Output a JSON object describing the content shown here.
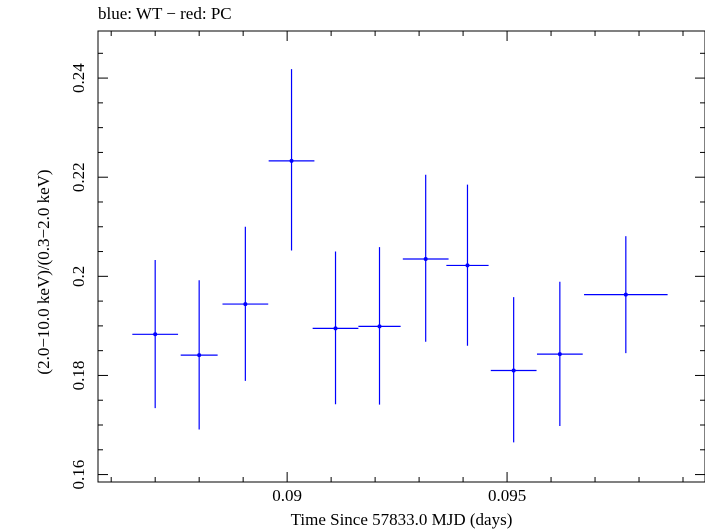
{
  "chart_data": {
    "type": "scatter",
    "title": "blue: WT − red: PC",
    "xlabel": "Time Since 57833.0 MJD (days)",
    "ylabel": "(2.0−10.0 keV)/(0.3−2.0 keV)",
    "xlim": [
      0.0857,
      0.0995
    ],
    "ylim": [
      0.1585,
      0.2495
    ],
    "x_ticks": [
      0.09,
      0.095
    ],
    "x_tick_labels": [
      "0.09",
      "0.095"
    ],
    "y_ticks": [
      0.16,
      0.18,
      0.2,
      0.22,
      0.24
    ],
    "y_tick_labels": [
      "0.16",
      "0.18",
      "0.2",
      "0.22",
      "0.24"
    ],
    "grid": false,
    "series": [
      {
        "color": "#0000ff",
        "points": [
          {
            "x": 0.087,
            "xerr": 0.00052,
            "y": 0.1883,
            "yerr_low": 0.0149,
            "yerr_high": 0.015
          },
          {
            "x": 0.088,
            "xerr": 0.00042,
            "y": 0.1841,
            "yerr_low": 0.015,
            "yerr_high": 0.0151
          },
          {
            "x": 0.08905,
            "xerr": 0.00052,
            "y": 0.1944,
            "yerr_low": 0.0155,
            "yerr_high": 0.0156
          },
          {
            "x": 0.0901,
            "xerr": 0.00052,
            "y": 0.2233,
            "yerr_low": 0.0181,
            "yerr_high": 0.0185
          },
          {
            "x": 0.0911,
            "xerr": 0.00052,
            "y": 0.1895,
            "yerr_low": 0.0153,
            "yerr_high": 0.0155
          },
          {
            "x": 0.0921,
            "xerr": 0.00048,
            "y": 0.1899,
            "yerr_low": 0.0158,
            "yerr_high": 0.016
          },
          {
            "x": 0.09315,
            "xerr": 0.00052,
            "y": 0.2035,
            "yerr_low": 0.0167,
            "yerr_high": 0.017
          },
          {
            "x": 0.0941,
            "xerr": 0.00048,
            "y": 0.2022,
            "yerr_low": 0.0162,
            "yerr_high": 0.0163
          },
          {
            "x": 0.09515,
            "xerr": 0.00052,
            "y": 0.181,
            "yerr_low": 0.0145,
            "yerr_high": 0.0148
          },
          {
            "x": 0.0962,
            "xerr": 0.00052,
            "y": 0.1843,
            "yerr_low": 0.0145,
            "yerr_high": 0.0146
          },
          {
            "x": 0.0977,
            "xerr": 0.00095,
            "y": 0.1963,
            "yerr_low": 0.0118,
            "yerr_high": 0.0118
          }
        ]
      }
    ]
  }
}
